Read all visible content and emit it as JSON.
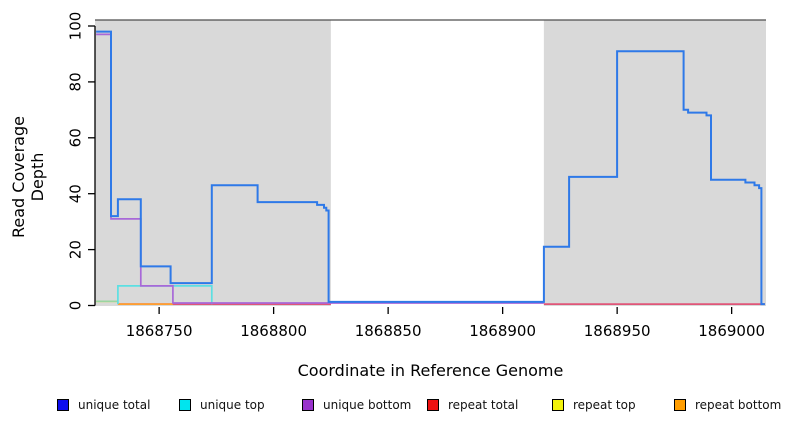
{
  "chart_data": {
    "type": "line",
    "subtype": "step-coverage-plot",
    "title": "",
    "xlabel": "Coordinate in Reference Genome",
    "ylabel": "Read Coverage Depth",
    "xlim": [
      1868722,
      1869015
    ],
    "ylim": [
      0,
      100
    ],
    "xticks": [
      1868750,
      1868800,
      1868850,
      1868900,
      1868950,
      1869000
    ],
    "yticks": [
      0,
      20,
      40,
      60,
      80,
      100
    ],
    "grid": false,
    "legend_position": "bottom",
    "shaded_regions": [
      [
        1868722,
        1868825
      ],
      [
        1868918,
        1869015
      ]
    ],
    "colors": {
      "shading": "#d9d9d9",
      "frame_line": "#4e4e4e",
      "axis": "#000000",
      "unique_total": "#2e79e8",
      "unique_top": "#5cdfe2",
      "unique_bottom": "#a868d8",
      "repeat_total": "#e05578",
      "repeat_top": "#f2e30e",
      "repeat_bottom": "#ffa02e"
    },
    "series": [
      {
        "name": "repeat top",
        "color": "#f2e30e",
        "width": 1.7,
        "runs": [
          [
            [
              1868722.5,
              1.5
            ],
            [
              1868732,
              1.5
            ]
          ]
        ]
      },
      {
        "name": "unique top / repeat top overlap",
        "color": "#9ad5a0",
        "width": 1.7,
        "runs": [
          [
            [
              1868722.5,
              1.5
            ],
            [
              1868732,
              1.5
            ]
          ]
        ]
      },
      {
        "name": "repeat total",
        "color": "#e05578",
        "width": 1.7,
        "runs": [
          [
            [
              1868732,
              0.5
            ],
            [
              1868825,
              0.5
            ]
          ],
          [
            [
              1868918,
              0.5
            ],
            [
              1869014.5,
              0.5
            ]
          ]
        ]
      },
      {
        "name": "repeat bottom",
        "color": "#ffa02e",
        "width": 1.8,
        "runs": [
          [
            [
              1868732,
              0.5
            ],
            [
              1868756,
              0.5
            ]
          ]
        ]
      },
      {
        "name": "unique top",
        "color": "#5cdfe2",
        "width": 1.7,
        "runs": [
          [
            [
              1868732,
              0.5
            ],
            [
              1868732,
              7
            ],
            [
              1868773,
              0.5
            ]
          ]
        ]
      },
      {
        "name": "unique bottom",
        "color": "#a868d8",
        "width": 1.7,
        "runs": [
          [
            [
              1868722.5,
              97
            ],
            [
              1868729,
              31
            ],
            [
              1868742,
              7
            ],
            [
              1868756,
              0.9
            ],
            [
              1868918,
              0.9
            ]
          ]
        ]
      },
      {
        "name": "unique total",
        "color": "#2e79e8",
        "width": 2,
        "runs": [
          [
            [
              1868722.5,
              98
            ],
            [
              1868729,
              32
            ],
            [
              1868732,
              38
            ],
            [
              1868742,
              14
            ],
            [
              1868755,
              8
            ],
            [
              1868773,
              43
            ],
            [
              1868793,
              37
            ],
            [
              1868819,
              36
            ],
            [
              1868822,
              35
            ],
            [
              1868823,
              34
            ],
            [
              1868824,
              1.3
            ],
            [
              1868918,
              21
            ],
            [
              1868929,
              46
            ],
            [
              1868950,
              91
            ],
            [
              1868979,
              70
            ],
            [
              1868981,
              69
            ],
            [
              1868989,
              68
            ],
            [
              1868991,
              45
            ],
            [
              1869006,
              44
            ],
            [
              1869010,
              43
            ],
            [
              1869012,
              42
            ],
            [
              1869013,
              0.5
            ],
            [
              1869014.5,
              0.5
            ]
          ]
        ]
      }
    ],
    "legend": [
      {
        "label": "unique total",
        "swatch": "#0d0dee"
      },
      {
        "label": "unique top",
        "swatch": "#00e5ee"
      },
      {
        "label": "unique bottom",
        "swatch": "#9932cc"
      },
      {
        "label": "repeat total",
        "swatch": "#ee1111"
      },
      {
        "label": "repeat top",
        "swatch": "#f2f20c"
      },
      {
        "label": "repeat bottom",
        "swatch": "#ff9d00"
      }
    ]
  }
}
